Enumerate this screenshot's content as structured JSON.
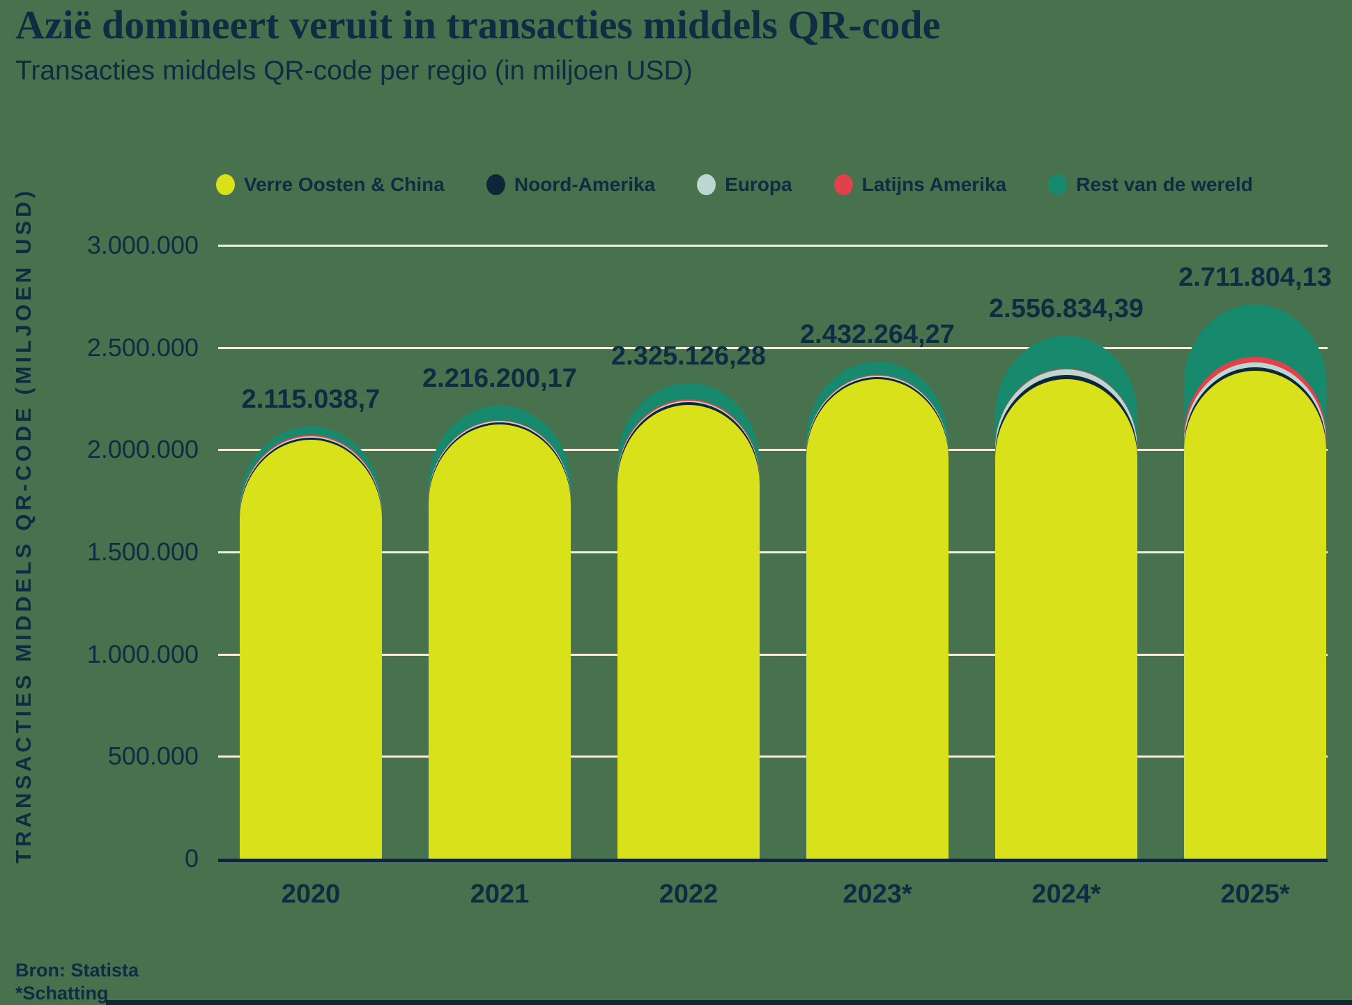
{
  "title": "Azië domineert veruit in transacties middels QR-code",
  "subtitle": "Transacties middels QR-code per regio (in miljoen USD)",
  "y_axis_title": "TRANSACTIES MIDDELS QR-CODE (MILJOEN USD)",
  "source_line1": "Bron: Statista",
  "source_line2": "*Schatting",
  "colors": {
    "background": "#48714E",
    "text_navy": "#0F2C42",
    "gridline_cream": "#F4EEDA",
    "axis_navy": "#0E2738",
    "far_east_yellow": "#D9E11A",
    "north_america_navy": "#0E2738",
    "europe_gray": "#BDD6D2",
    "latin_america_red": "#E2404A",
    "rest_of_world_teal": "#178A6E"
  },
  "chart_data": {
    "type": "bar",
    "stacked": true,
    "rounded_tops": true,
    "grid": true,
    "legend_position": "top",
    "categories": [
      "2020",
      "2021",
      "2022",
      "2023*",
      "2024*",
      "2025*"
    ],
    "series": [
      {
        "name": "Verre Oosten & China",
        "color": "#D9E11A",
        "values": [
          2050000,
          2124000,
          2220000,
          2344000,
          2347000,
          2388000
        ]
      },
      {
        "name": "Noord-Amerika",
        "color": "#0E2738",
        "values": [
          10000,
          10000,
          12000,
          13000,
          20000,
          16000
        ]
      },
      {
        "name": "Europa",
        "color": "#BDD6D2",
        "values": [
          6000,
          6000,
          8000,
          5000,
          25000,
          22000
        ]
      },
      {
        "name": "Latijns Amerika",
        "color": "#E2404A",
        "values": [
          6000,
          6000,
          6000,
          3000,
          4000,
          30000
        ]
      },
      {
        "name": "Rest van de wereld",
        "color": "#178A6E",
        "values": [
          43038.7,
          70200.17,
          79126.28,
          67264.27,
          160834.39,
          255804.13
        ]
      }
    ],
    "totals": [
      2115038.7,
      2216200.17,
      2325126.28,
      2432264.27,
      2556834.39,
      2711804.13
    ],
    "total_labels": [
      "2.115.038,7",
      "2.216.200,17",
      "2.325.126,28",
      "2.432.264,27",
      "2.556.834,39",
      "2.711.804,13"
    ],
    "y_ticks": [
      {
        "label": "3.000.000",
        "value": 3000000
      },
      {
        "label": "2.500.000",
        "value": 2500000
      },
      {
        "label": "2.000.000",
        "value": 2000000
      },
      {
        "label": "1.500.000",
        "value": 1500000
      },
      {
        "label": "1.000.000",
        "value": 1000000
      },
      {
        "label": "500.000",
        "value": 500000
      },
      {
        "label": "0",
        "value": 0
      }
    ],
    "ylim": [
      0,
      3000000
    ],
    "xlabel": "",
    "ylabel": "TRANSACTIES MIDDELS QR-CODE (MILJOEN USD)"
  }
}
